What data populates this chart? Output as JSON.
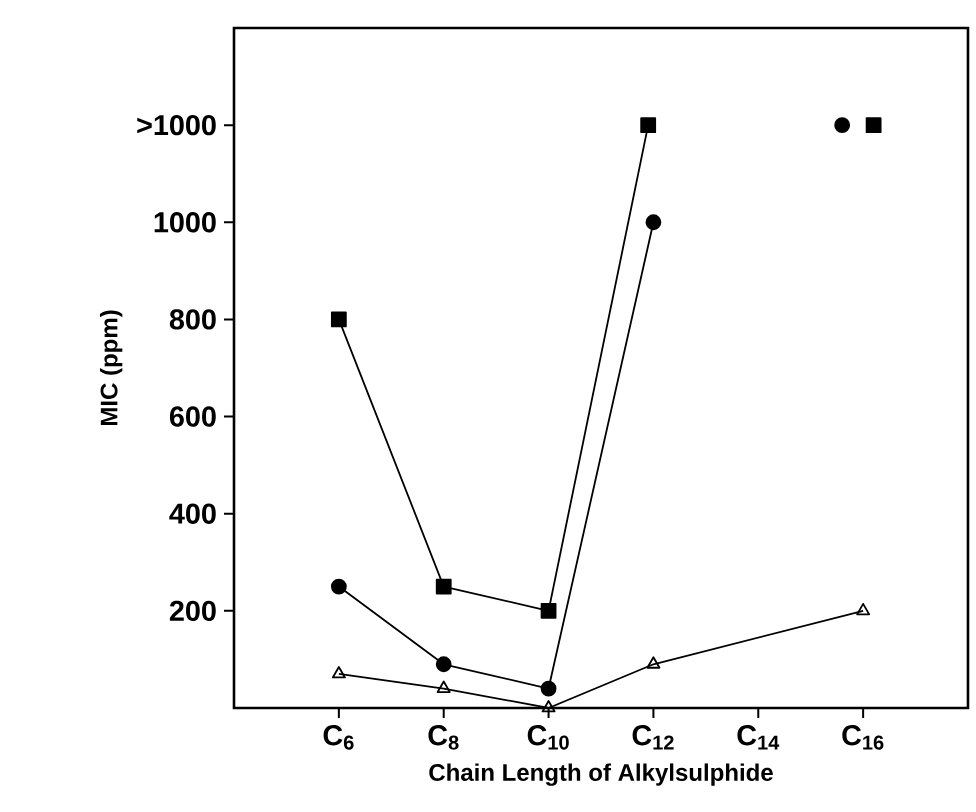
{
  "chart_data": {
    "type": "line",
    "xlabel": "Chain Length of Alkylsulphide",
    "ylabel": "MIC (ppm)",
    "xlim": [
      4,
      18
    ],
    "ylim": [
      0,
      1400
    ],
    "xticks": [
      {
        "value": 6,
        "label": "C$_{6}$"
      },
      {
        "value": 8,
        "label": "C$_{8}$"
      },
      {
        "value": 10,
        "label": "C$_{10}$"
      },
      {
        "value": 12,
        "label": "C$_{12}$"
      },
      {
        "value": 14,
        "label": "C$_{14}$"
      },
      {
        "value": 16,
        "label": "C$_{16}$"
      }
    ],
    "yticks": [
      200,
      400,
      600,
      800,
      1000,
      {
        "value": 1200,
        "label": ">1000"
      }
    ],
    "grid": false,
    "series": [
      {
        "color": "#000000",
        "marker": "square",
        "x": [
          6,
          8,
          10,
          11.9,
          14,
          16.2
        ],
        "values": [
          800,
          250,
          200,
          1200,
          null,
          1200
        ]
      },
      {
        "color": "#000000",
        "marker": "circle",
        "x": [
          6,
          8,
          10,
          12,
          14,
          15.6
        ],
        "values": [
          250,
          90,
          40,
          1000,
          null,
          1200
        ]
      },
      {
        "color": "#000000",
        "marker": "triangle",
        "x": [
          6,
          8,
          10,
          12,
          16
        ],
        "values": [
          70,
          40,
          0,
          90,
          200
        ]
      }
    ]
  }
}
